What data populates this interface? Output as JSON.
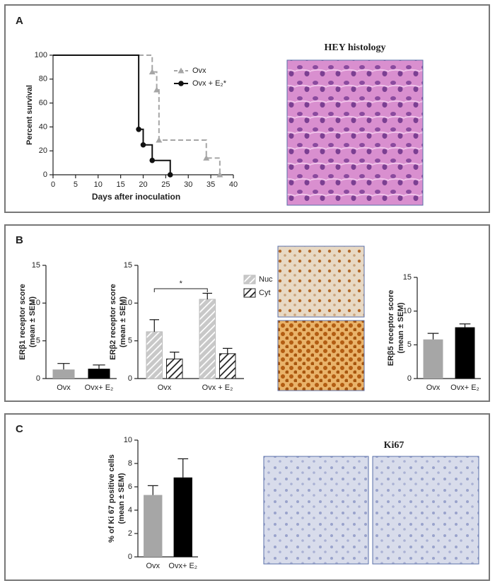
{
  "panels": [
    {
      "label": "A",
      "image_title": "HEY histology"
    },
    {
      "label": "B"
    },
    {
      "label": "C",
      "image_title": "Ki67"
    }
  ],
  "chart_data": [
    {
      "type": "step",
      "ylabel": "Percent survival",
      "xlabel": "Days after inoculation",
      "xlim": [
        0,
        40
      ],
      "xticks": [
        0,
        5,
        10,
        15,
        20,
        25,
        30,
        35,
        40
      ],
      "ylim": [
        0,
        100
      ],
      "yticks": [
        0,
        20,
        40,
        60,
        80,
        100
      ],
      "series": [
        {
          "name": "Ovx",
          "color": "#a6a6a6",
          "dashed": true,
          "marker": "triangle",
          "x": [
            0,
            22,
            23,
            23.5,
            34,
            37
          ],
          "values": [
            100,
            86,
            71,
            29,
            14,
            0
          ]
        },
        {
          "name": "Ovx + E₂*",
          "color": "#111111",
          "dashed": false,
          "marker": "circle",
          "x": [
            0,
            19,
            20,
            22,
            26
          ],
          "values": [
            100,
            38,
            25,
            12,
            0
          ]
        }
      ]
    },
    {
      "type": "bar",
      "ylabel": [
        "ERβ1 receptor score",
        "(mean ± SEM)"
      ],
      "categories": [
        "Ovx",
        "Ovx+ E₂"
      ],
      "values": [
        1.2,
        1.3
      ],
      "errors": [
        0.8,
        0.5
      ],
      "colors": [
        "#a6a6a6",
        "#000000"
      ],
      "ylim": [
        0,
        15
      ],
      "yticks": [
        0,
        5,
        10,
        15
      ]
    },
    {
      "type": "grouped_bar",
      "ylabel": [
        "ERβ2 receptor score",
        "(mean ± SEM)"
      ],
      "categories": [
        "Ovx",
        "Ovx + E₂"
      ],
      "series": [
        {
          "name": "Nuc",
          "color": "#c8c8c8",
          "values": [
            6.2,
            10.5
          ],
          "errors": [
            1.6,
            0.8
          ]
        },
        {
          "name": "Cyt",
          "color": "#222222",
          "values": [
            2.6,
            3.3
          ],
          "errors": [
            0.9,
            0.7
          ]
        }
      ],
      "annotation": "*",
      "ylim": [
        0,
        15
      ],
      "yticks": [
        0,
        5,
        10,
        15
      ]
    },
    {
      "type": "bar",
      "ylabel": [
        "ERβ5 receptor score",
        "(mean ± SEM)"
      ],
      "categories": [
        "Ovx",
        "Ovx+ E₂"
      ],
      "values": [
        5.8,
        7.6
      ],
      "errors": [
        0.9,
        0.5
      ],
      "colors": [
        "#a6a6a6",
        "#000000"
      ],
      "ylim": [
        0,
        15
      ],
      "yticks": [
        0,
        5,
        10,
        15
      ]
    },
    {
      "type": "bar",
      "ylabel": [
        "% of Ki 67 positive cells",
        "(mean ± SEM)"
      ],
      "categories": [
        "Ovx",
        "Ovx+ E₂"
      ],
      "values": [
        5.3,
        6.8
      ],
      "errors": [
        0.8,
        1.6
      ],
      "colors": [
        "#a6a6a6",
        "#000000"
      ],
      "ylim": [
        0,
        10
      ],
      "yticks": [
        0,
        2,
        4,
        6,
        8,
        10
      ]
    }
  ]
}
